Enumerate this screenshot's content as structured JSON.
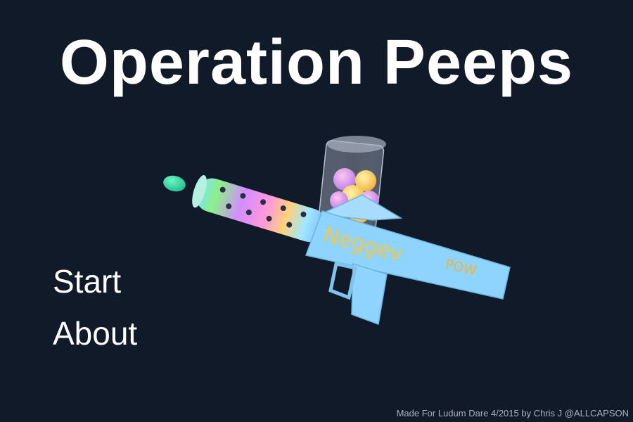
{
  "game": {
    "title": "Operation Peeps"
  },
  "menu": {
    "items": [
      {
        "label": "Start"
      },
      {
        "label": "About"
      }
    ]
  },
  "footer": {
    "credit": "Made For Ludum Dare 4/2015 by Chris J @ALLCAPSON"
  },
  "artwork": {
    "gun_labels": {
      "name": "Neggev",
      "pow": "POW"
    },
    "colors": {
      "background": "#111a29",
      "gun_body": "#8fd3ff",
      "egg_projectile": "#2ad69a",
      "canister": "#cfd6e6"
    }
  }
}
